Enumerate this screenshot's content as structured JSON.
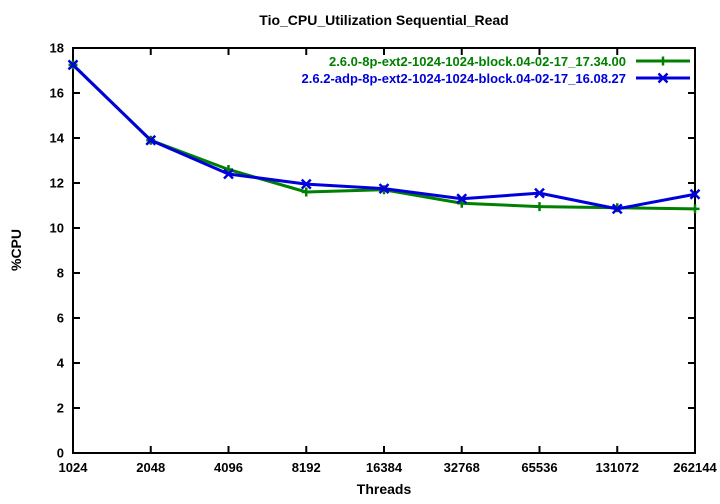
{
  "page": {
    "background_color": "#ffffff",
    "axis_color": "#000000"
  },
  "chart_data": {
    "type": "line",
    "title": "Tio_CPU_Utilization Sequential_Read",
    "xlabel": "Threads",
    "ylabel": "%CPU",
    "x_scale": "log2",
    "categories": [
      "1024",
      "2048",
      "4096",
      "8192",
      "16384",
      "32768",
      "65536",
      "131072",
      "262144"
    ],
    "ylim": [
      0,
      18
    ],
    "yticks": [
      0,
      2,
      4,
      6,
      8,
      10,
      12,
      14,
      16,
      18
    ],
    "grid": false,
    "legend_position": "top-right-inside",
    "series": [
      {
        "name": "2.6.0-8p-ext2-1024-1024-block.04-02-17_17.34.00",
        "color": "#008000",
        "marker": "plus",
        "values": [
          17.25,
          13.9,
          12.6,
          11.6,
          11.7,
          11.1,
          10.95,
          10.9,
          10.85
        ]
      },
      {
        "name": "2.6.2-adp-8p-ext2-1024-1024-block.04-02-17_16.08.27",
        "color": "#0000dd",
        "marker": "cross",
        "values": [
          17.25,
          13.9,
          12.4,
          11.95,
          11.75,
          11.3,
          11.55,
          10.85,
          11.5
        ]
      }
    ]
  }
}
